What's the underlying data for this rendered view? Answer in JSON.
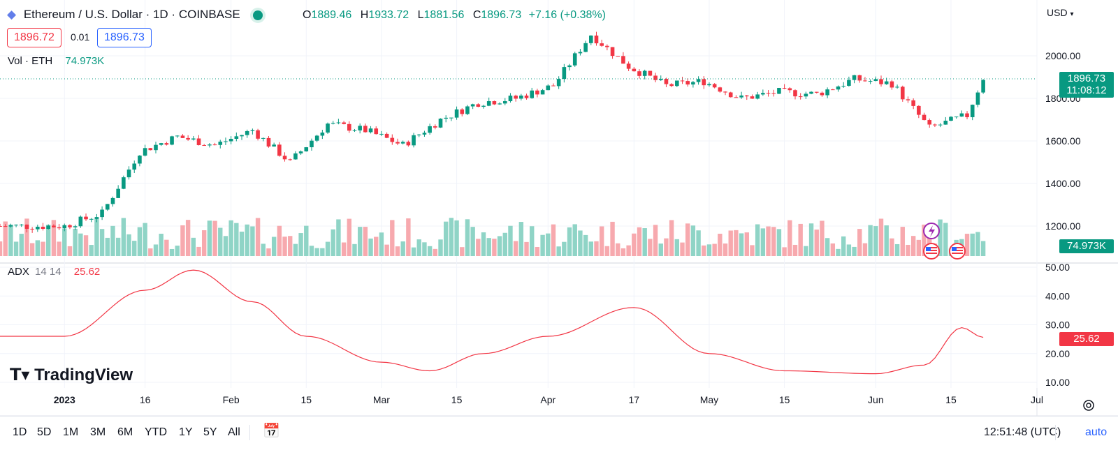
{
  "header": {
    "symbol_title": "Ethereum / U.S. Dollar · 1D · COINBASE",
    "ohlc": {
      "open_label": "O",
      "open": "1889.46",
      "high_label": "H",
      "high": "1933.72",
      "low_label": "L",
      "low": "1881.56",
      "close_label": "C",
      "close": "1896.73",
      "change": "+7.16 (+0.38%)"
    },
    "sell_price": "1896.72",
    "spread": "0.01",
    "buy_price": "1896.73",
    "volume_label": "Vol · ETH",
    "volume_value": "74.973K",
    "currency": "USD"
  },
  "price_axis": {
    "ticks": [
      "2000.00",
      "1800.00",
      "1600.00",
      "1400.00",
      "1200.00"
    ],
    "last_price": "1896.73",
    "countdown": "11:08:12",
    "volume_tag": "74.973K"
  },
  "adx": {
    "label": "ADX",
    "params": "14 14",
    "value": "25.62",
    "ticks": [
      "50.00",
      "40.00",
      "30.00",
      "20.00",
      "10.00"
    ]
  },
  "time_axis": {
    "labels": [
      "2023",
      "16",
      "Feb",
      "15",
      "Mar",
      "15",
      "Apr",
      "17",
      "May",
      "15",
      "Jun",
      "15",
      "Jul"
    ]
  },
  "watermark": "TradingView",
  "bottom_toolbar": {
    "ranges": [
      "1D",
      "5D",
      "1M",
      "3M",
      "6M",
      "YTD",
      "1Y",
      "5Y",
      "All"
    ],
    "clock": "12:51:48 (UTC)",
    "auto_label": "auto"
  },
  "colors": {
    "up": "#089981",
    "down": "#f23645",
    "adx_line": "#f23645"
  },
  "chart_data": {
    "type": "candlestick",
    "title": "Ethereum / U.S. Dollar · 1D · COINBASE",
    "x_range": [
      "2022-12-20",
      "2023-07-01"
    ],
    "ylim": [
      1150,
      2150
    ],
    "series": [
      {
        "name": "Price (close, approx.)",
        "x": [
          "2023-01-01",
          "2023-01-08",
          "2023-01-15",
          "2023-01-22",
          "2023-01-29",
          "2023-02-05",
          "2023-02-12",
          "2023-02-19",
          "2023-02-26",
          "2023-03-05",
          "2023-03-12",
          "2023-03-19",
          "2023-03-26",
          "2023-04-02",
          "2023-04-09",
          "2023-04-16",
          "2023-04-23",
          "2023-04-30",
          "2023-05-07",
          "2023-05-14",
          "2023-05-21",
          "2023-05-28",
          "2023-06-04",
          "2023-06-11",
          "2023-06-18",
          "2023-06-21"
        ],
        "values": [
          1200,
          1260,
          1550,
          1620,
          1580,
          1650,
          1500,
          1680,
          1650,
          1580,
          1700,
          1780,
          1800,
          1860,
          2100,
          1950,
          1860,
          1880,
          1800,
          1830,
          1820,
          1890,
          1870,
          1660,
          1720,
          1897
        ]
      },
      {
        "name": "ADX 14 14",
        "x": [
          "2023-01-01",
          "2023-01-16",
          "2023-01-25",
          "2023-02-05",
          "2023-02-15",
          "2023-03-01",
          "2023-03-10",
          "2023-03-20",
          "2023-04-01",
          "2023-04-17",
          "2023-05-01",
          "2023-05-15",
          "2023-06-01",
          "2023-06-10",
          "2023-06-17",
          "2023-06-21"
        ],
        "values": [
          26,
          42,
          49,
          38,
          26,
          17,
          14,
          20,
          26,
          36,
          20,
          14,
          13,
          16,
          29,
          25.62
        ]
      }
    ]
  }
}
